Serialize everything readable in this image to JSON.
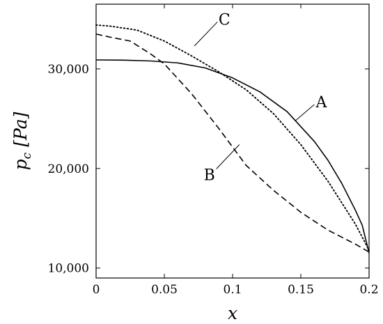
{
  "chart_data": {
    "type": "line",
    "xlabel": "x",
    "ylabel": "p_c [Pa]",
    "ylabel_parts": {
      "symbol": "p",
      "subscript": "c",
      "unit": "[Pa]"
    },
    "xlim": [
      0,
      0.2
    ],
    "ylim": [
      9000,
      36500
    ],
    "x_ticks": [
      0,
      0.05,
      0.1,
      0.15,
      0.2
    ],
    "x_tick_labels": [
      "0",
      "0.05",
      "0.1",
      "0.15",
      "0.2"
    ],
    "y_ticks": [
      10000,
      20000,
      30000
    ],
    "y_tick_labels": [
      "10,000",
      "20,000",
      "30,000"
    ],
    "grid": false,
    "series": [
      {
        "name": "A",
        "style": "solid",
        "x": [
          0,
          0.02,
          0.04,
          0.06,
          0.08,
          0.1,
          0.12,
          0.14,
          0.16,
          0.17,
          0.18,
          0.19,
          0.195,
          0.2
        ],
        "y": [
          30900,
          30880,
          30800,
          30600,
          30100,
          29100,
          27700,
          25700,
          22700,
          20800,
          18500,
          15800,
          14300,
          11500
        ]
      },
      {
        "name": "B",
        "style": "dashed",
        "x": [
          0,
          0.01,
          0.025,
          0.04,
          0.05,
          0.07,
          0.09,
          0.11,
          0.13,
          0.15,
          0.17,
          0.19,
          0.2
        ],
        "y": [
          33500,
          33200,
          32800,
          31500,
          30500,
          27500,
          24000,
          20300,
          17800,
          15600,
          13800,
          12400,
          11600
        ]
      },
      {
        "name": "C",
        "style": "dotted",
        "x": [
          0,
          0.01,
          0.03,
          0.05,
          0.07,
          0.09,
          0.11,
          0.13,
          0.15,
          0.17,
          0.19,
          0.2
        ],
        "y": [
          34400,
          34300,
          33900,
          32800,
          31300,
          29700,
          27900,
          25500,
          22400,
          18700,
          14400,
          11800
        ]
      }
    ],
    "annotations": [
      {
        "text": "A",
        "x": 0.165,
        "y": 26700,
        "leader_to": [
          0.146,
          24800
        ]
      },
      {
        "text": "B",
        "x": 0.083,
        "y": 19400,
        "leader_to": [
          0.105,
          22400
        ]
      },
      {
        "text": "C",
        "x": 0.094,
        "y": 35000,
        "leader_to": [
          0.072,
          32300
        ]
      }
    ]
  }
}
